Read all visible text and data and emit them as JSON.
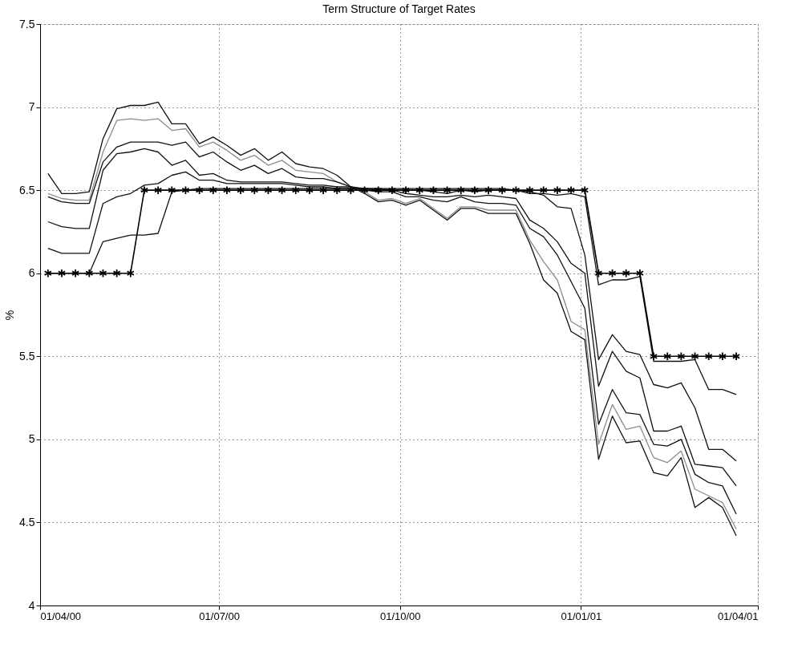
{
  "chart_data": {
    "type": "line",
    "title": "Term Structure of Target Rates",
    "ylabel": "%",
    "x": [
      "2000-04-05",
      "2000-04-12",
      "2000-04-19",
      "2000-04-26",
      "2000-05-03",
      "2000-05-10",
      "2000-05-17",
      "2000-05-24",
      "2000-05-31",
      "2000-06-07",
      "2000-06-14",
      "2000-06-21",
      "2000-06-28",
      "2000-07-05",
      "2000-07-12",
      "2000-07-19",
      "2000-07-26",
      "2000-08-02",
      "2000-08-09",
      "2000-08-16",
      "2000-08-23",
      "2000-08-30",
      "2000-09-06",
      "2000-09-13",
      "2000-09-20",
      "2000-09-27",
      "2000-10-04",
      "2000-10-11",
      "2000-10-18",
      "2000-10-25",
      "2000-11-01",
      "2000-11-08",
      "2000-11-15",
      "2000-11-22",
      "2000-11-29",
      "2000-12-06",
      "2000-12-13",
      "2000-12-20",
      "2000-12-27",
      "2001-01-03",
      "2001-01-10",
      "2001-01-17",
      "2001-01-24",
      "2001-01-31",
      "2001-02-07",
      "2001-02-14",
      "2001-02-21",
      "2001-02-28",
      "2001-03-07",
      "2001-03-14",
      "2001-03-21"
    ],
    "series": [
      {
        "color": "#111111",
        "values": [
          6.6,
          6.48,
          6.48,
          6.49,
          6.81,
          6.99,
          7.01,
          7.01,
          7.03,
          6.9,
          6.9,
          6.78,
          6.82,
          6.77,
          6.71,
          6.75,
          6.68,
          6.73,
          6.66,
          6.64,
          6.63,
          6.59,
          6.52,
          6.48,
          6.43,
          6.44,
          6.41,
          6.44,
          6.38,
          6.32,
          6.39,
          6.39,
          6.36,
          6.36,
          6.36,
          6.18,
          5.96,
          5.88,
          5.65,
          5.6,
          4.88,
          5.14,
          4.98,
          4.99,
          4.8,
          4.78,
          4.89,
          4.59,
          4.65,
          4.59,
          4.42
        ]
      },
      {
        "color": "#8c8c8c",
        "values": [
          6.48,
          6.45,
          6.44,
          6.44,
          6.73,
          6.92,
          6.93,
          6.92,
          6.93,
          6.86,
          6.87,
          6.76,
          6.79,
          6.74,
          6.68,
          6.71,
          6.65,
          6.68,
          6.62,
          6.61,
          6.6,
          6.55,
          6.52,
          6.49,
          6.44,
          6.45,
          6.42,
          6.45,
          6.39,
          6.33,
          6.4,
          6.4,
          6.38,
          6.38,
          6.38,
          6.2,
          6.07,
          5.96,
          5.71,
          5.66,
          4.97,
          5.21,
          5.06,
          5.08,
          4.89,
          4.86,
          4.93,
          4.7,
          4.66,
          4.62,
          4.46
        ]
      },
      {
        "color": "#111111",
        "values": [
          6.46,
          6.43,
          6.42,
          6.42,
          6.67,
          6.76,
          6.79,
          6.79,
          6.79,
          6.77,
          6.79,
          6.7,
          6.73,
          6.67,
          6.62,
          6.65,
          6.6,
          6.63,
          6.58,
          6.57,
          6.57,
          6.55,
          6.52,
          6.5,
          6.49,
          6.49,
          6.46,
          6.46,
          6.44,
          6.43,
          6.46,
          6.43,
          6.42,
          6.42,
          6.41,
          6.27,
          6.22,
          6.11,
          5.95,
          5.79,
          5.09,
          5.3,
          5.16,
          5.15,
          4.97,
          4.96,
          5.0,
          4.79,
          4.74,
          4.72,
          4.55
        ]
      },
      {
        "color": "#111111",
        "values": [
          6.31,
          6.28,
          6.27,
          6.27,
          6.62,
          6.72,
          6.73,
          6.75,
          6.73,
          6.65,
          6.68,
          6.59,
          6.6,
          6.56,
          6.55,
          6.55,
          6.55,
          6.55,
          6.54,
          6.53,
          6.53,
          6.52,
          6.52,
          6.51,
          6.5,
          6.5,
          6.48,
          6.47,
          6.46,
          6.46,
          6.47,
          6.46,
          6.47,
          6.46,
          6.45,
          6.32,
          6.27,
          6.19,
          6.06,
          6.0,
          5.32,
          5.53,
          5.41,
          5.37,
          5.05,
          5.05,
          5.08,
          4.85,
          4.84,
          4.83,
          4.72
        ]
      },
      {
        "color": "#111111",
        "values": [
          6.15,
          6.12,
          6.12,
          6.12,
          6.42,
          6.46,
          6.48,
          6.53,
          6.54,
          6.59,
          6.61,
          6.56,
          6.56,
          6.54,
          6.54,
          6.54,
          6.54,
          6.54,
          6.53,
          6.52,
          6.52,
          6.51,
          6.51,
          6.51,
          6.51,
          6.5,
          6.5,
          6.5,
          6.49,
          6.48,
          6.5,
          6.49,
          6.5,
          6.5,
          6.5,
          6.49,
          6.47,
          6.4,
          6.39,
          6.11,
          5.48,
          5.63,
          5.53,
          5.51,
          5.33,
          5.31,
          5.34,
          5.19,
          4.94,
          4.94,
          4.87
        ]
      },
      {
        "color": "#111111",
        "values": [
          6.0,
          6.0,
          6.0,
          6.0,
          6.19,
          6.21,
          6.23,
          6.23,
          6.24,
          6.49,
          6.5,
          6.51,
          6.51,
          6.51,
          6.51,
          6.51,
          6.51,
          6.51,
          6.51,
          6.51,
          6.51,
          6.51,
          6.51,
          6.51,
          6.51,
          6.51,
          6.51,
          6.51,
          6.51,
          6.51,
          6.51,
          6.51,
          6.51,
          6.51,
          6.5,
          6.48,
          6.48,
          6.47,
          6.48,
          6.46,
          5.93,
          5.96,
          5.96,
          5.98,
          5.47,
          5.47,
          5.47,
          5.48,
          5.3,
          5.3,
          5.27
        ]
      },
      {
        "color": "#000000",
        "marker": "cross",
        "values": [
          6.0,
          6.0,
          6.0,
          6.0,
          6.0,
          6.0,
          6.0,
          6.5,
          6.5,
          6.5,
          6.5,
          6.5,
          6.5,
          6.5,
          6.5,
          6.5,
          6.5,
          6.5,
          6.5,
          6.5,
          6.5,
          6.5,
          6.5,
          6.5,
          6.5,
          6.5,
          6.5,
          6.5,
          6.5,
          6.5,
          6.5,
          6.5,
          6.5,
          6.5,
          6.5,
          6.5,
          6.5,
          6.5,
          6.5,
          6.5,
          6.0,
          6.0,
          6.0,
          6.0,
          5.5,
          5.5,
          5.5,
          5.5,
          5.5,
          5.5,
          5.5
        ]
      }
    ],
    "xlim": [
      "2000-04-01",
      "2001-04-01"
    ],
    "xticks": [
      {
        "value": "2000-04-01",
        "label": "01/04/00"
      },
      {
        "value": "2000-07-01",
        "label": "01/07/00"
      },
      {
        "value": "2000-10-01",
        "label": "01/10/00"
      },
      {
        "value": "2001-01-01",
        "label": "01/01/01"
      },
      {
        "value": "2001-04-01",
        "label": "01/04/01"
      }
    ],
    "ylim": [
      4,
      7.5
    ],
    "yticks": [
      4,
      4.5,
      5,
      5.5,
      6,
      6.5,
      7,
      7.5
    ],
    "grid": true,
    "line_style": "solid"
  }
}
